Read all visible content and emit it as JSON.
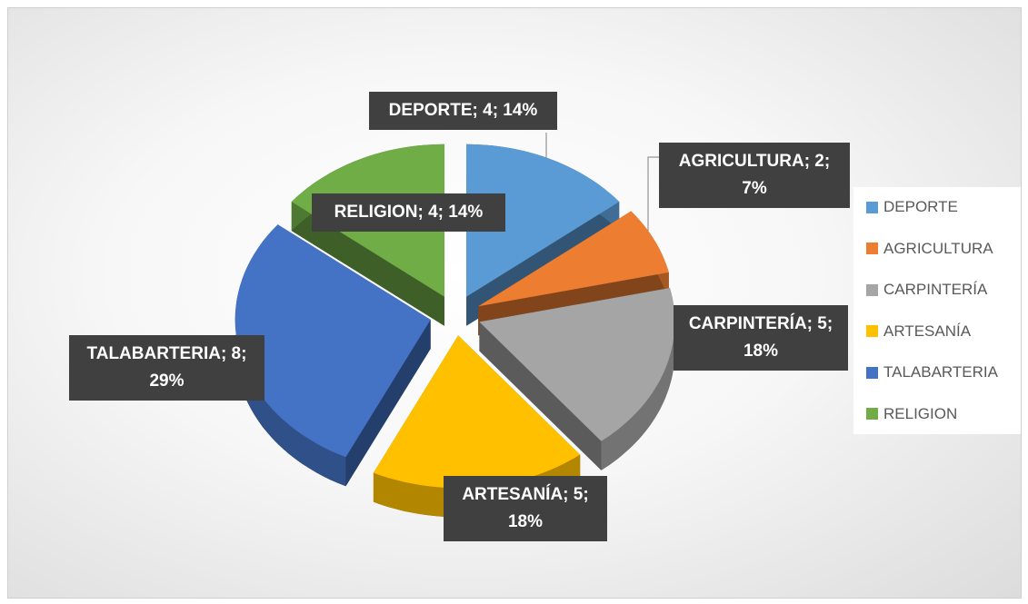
{
  "chart_data": {
    "type": "pie",
    "categories": [
      "DEPORTE",
      "AGRICULTURA",
      "CARPINTERÍA",
      "ARTESANÍA",
      "TALABARTERIA",
      "RELIGION"
    ],
    "values": [
      4,
      2,
      5,
      5,
      8,
      4
    ],
    "value_labels": [
      "DEPORTE; 4; 14%",
      "AGRICULTURA; 2; 7%",
      "CARPINTERÍA; 5; 18%",
      "ARTESANÍA; 5; 18%",
      "TALABARTERIA; 8; 29%",
      "RELIGION; 4; 14%"
    ],
    "colors": [
      "#5b9bd5",
      "#ed7d31",
      "#a5a5a5",
      "#ffc000",
      "#4472c4",
      "#70ad47"
    ],
    "legend": "right"
  }
}
